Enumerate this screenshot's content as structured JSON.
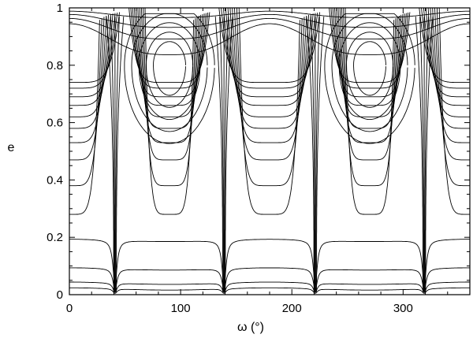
{
  "chart_data": {
    "type": "line",
    "title": "",
    "xlabel": "ω (°)",
    "ylabel": "e",
    "xlim": [
      0,
      360
    ],
    "ylim": [
      0,
      1
    ],
    "x_ticks": [
      0,
      100,
      200,
      300
    ],
    "y_ticks": [
      0,
      0.2,
      0.4,
      0.6,
      0.8,
      1
    ],
    "x_tick_labels": [
      "0",
      "100",
      "200",
      "300"
    ],
    "y_tick_labels": [
      "0",
      "0.2",
      "0.4",
      "0.6",
      "0.8",
      "1"
    ],
    "grid": false,
    "description_of_series": "level curves of a conserved quantity in the (ω, e) plane",
    "separatrix_x": [
      41,
      139,
      221,
      319
    ],
    "libration_centers": [
      {
        "x": 90,
        "y": 0.8
      },
      {
        "x": 270,
        "y": 0.8
      }
    ],
    "circulating_levels_low": [
      0.02,
      0.04,
      0.09,
      0.19
    ],
    "circulating_levels_high": [
      0.88,
      0.92,
      0.95,
      0.975
    ],
    "libration_min_e": [
      0.28,
      0.38,
      0.47,
      0.53,
      0.58,
      0.62,
      0.66,
      0.69,
      0.72,
      0.74
    ]
  }
}
